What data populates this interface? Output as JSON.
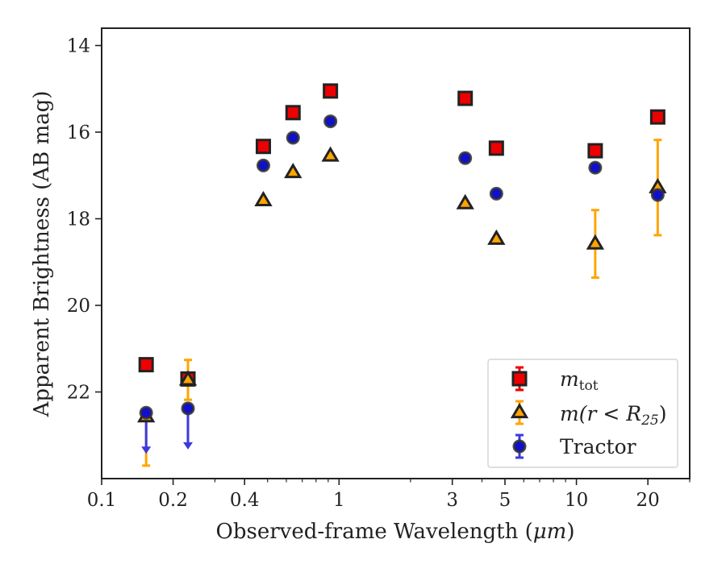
{
  "chart_data": {
    "type": "scatter",
    "xlabel_prefix": "Observed-frame Wavelength (",
    "xlabel_unit": "μm",
    "xlabel_suffix": ")",
    "ylabel": "Apparent Brightness (AB mag)",
    "x_scale": "log",
    "xlim": [
      0.1,
      30
    ],
    "ylim": [
      24,
      13.6
    ],
    "y_inverted": true,
    "grid": false,
    "legend_position": "lower-right",
    "x_ticks": [
      {
        "value": 0.1,
        "label": "0.1"
      },
      {
        "value": 0.2,
        "label": "0.2"
      },
      {
        "value": 0.4,
        "label": "0.4"
      },
      {
        "value": 1,
        "label": "1"
      },
      {
        "value": 3,
        "label": "3"
      },
      {
        "value": 5,
        "label": "5"
      },
      {
        "value": 10,
        "label": "10"
      },
      {
        "value": 20,
        "label": "20"
      }
    ],
    "y_ticks": [
      {
        "value": 14,
        "label": "14"
      },
      {
        "value": 16,
        "label": "16"
      },
      {
        "value": 18,
        "label": "18"
      },
      {
        "value": 20,
        "label": "20"
      },
      {
        "value": 22,
        "label": "22"
      }
    ],
    "series": [
      {
        "name": "m_tot",
        "legend_main": "m",
        "legend_sub": "tot",
        "marker": "square",
        "fill": "#ee0000",
        "edge": "#222222",
        "errcolor": "#ee0000",
        "points": [
          {
            "x": 0.154,
            "y": 21.37,
            "err": 0.07
          },
          {
            "x": 0.231,
            "y": 21.7,
            "err": 0.07
          },
          {
            "x": 0.48,
            "y": 16.33
          },
          {
            "x": 0.64,
            "y": 15.55
          },
          {
            "x": 0.92,
            "y": 15.05
          },
          {
            "x": 3.4,
            "y": 15.22
          },
          {
            "x": 4.6,
            "y": 16.37
          },
          {
            "x": 12.0,
            "y": 16.43
          },
          {
            "x": 22.0,
            "y": 15.65
          }
        ]
      },
      {
        "name": "m(r<R25)",
        "legend_text": "m(r < R",
        "legend_sub": "25",
        "legend_close": ")",
        "marker": "triangle",
        "fill": "#ffa500",
        "edge": "#222222",
        "errcolor": "#ffa500",
        "points": [
          {
            "x": 0.154,
            "y": 22.57,
            "err_low": 1.13,
            "err_high": 0.0
          },
          {
            "x": 0.231,
            "y": 21.72,
            "err": 0.46
          },
          {
            "x": 0.48,
            "y": 17.58
          },
          {
            "x": 0.64,
            "y": 16.93
          },
          {
            "x": 0.92,
            "y": 16.55
          },
          {
            "x": 3.4,
            "y": 17.65
          },
          {
            "x": 4.6,
            "y": 18.47
          },
          {
            "x": 12.0,
            "y": 18.58,
            "err": 0.78
          },
          {
            "x": 22.0,
            "y": 17.28,
            "err": 1.1
          }
        ]
      },
      {
        "name": "Tractor",
        "legend_text": "Tractor",
        "marker": "circle",
        "fill": "#1010cc",
        "edge": "#333333",
        "errcolor": "#3a3ae0",
        "points": [
          {
            "x": 0.154,
            "y": 22.48,
            "upper_limit": true
          },
          {
            "x": 0.231,
            "y": 22.38,
            "upper_limit": true
          },
          {
            "x": 0.48,
            "y": 16.77
          },
          {
            "x": 0.64,
            "y": 16.13
          },
          {
            "x": 0.92,
            "y": 15.75
          },
          {
            "x": 3.4,
            "y": 16.6
          },
          {
            "x": 4.6,
            "y": 17.42
          },
          {
            "x": 12.0,
            "y": 16.82
          },
          {
            "x": 22.0,
            "y": 17.45
          }
        ]
      }
    ]
  }
}
